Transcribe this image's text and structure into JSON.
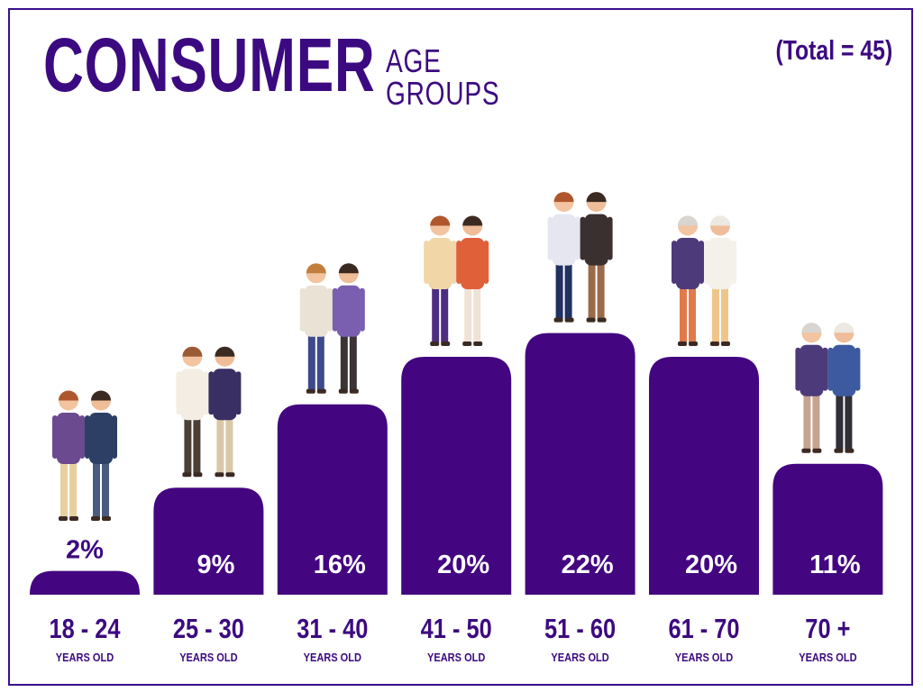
{
  "header": {
    "title_main": "CONSUMER",
    "title_sub_line1": "AGE",
    "title_sub_line2": "GROUPS",
    "total_label": "(Total = 45)"
  },
  "colors": {
    "bar": "#430680",
    "text": "#3c0a80",
    "label_on_bar": "#ffffff",
    "label_above_bar": "#3c0a80",
    "border": "#3a0f8c"
  },
  "icons": [
    "people-illustration"
  ],
  "chart_data": {
    "type": "bar",
    "title": "CONSUMER AGE GROUPS",
    "xlabel": "",
    "ylabel": "",
    "categories": [
      "18 - 24",
      "25 - 30",
      "31 - 40",
      "41 - 50",
      "51 - 60",
      "61 - 70",
      "70 +"
    ],
    "category_sublabel": "YEARS OLD",
    "values": [
      2,
      9,
      16,
      20,
      22,
      20,
      11
    ],
    "value_labels": [
      "2%",
      "9%",
      "16%",
      "20%",
      "22%",
      "20%",
      "11%"
    ],
    "unit": "%",
    "ylim": [
      0,
      25
    ],
    "grid": false,
    "legend": "none"
  }
}
